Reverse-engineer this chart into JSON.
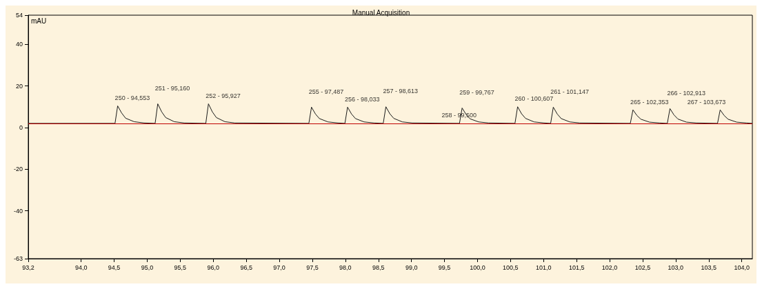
{
  "chart_data": {
    "type": "line",
    "title": "Manual Acquisition",
    "ylabel": "mAU",
    "xlim": [
      93.2,
      104.16
    ],
    "ylim": [
      -63,
      54
    ],
    "xticks": [
      {
        "value": 93.2,
        "label": "93,2"
      },
      {
        "value": 94,
        "label": "94,0"
      },
      {
        "value": 94.5,
        "label": "94,5"
      },
      {
        "value": 95,
        "label": "95,0"
      },
      {
        "value": 95.5,
        "label": "95,5"
      },
      {
        "value": 96,
        "label": "96,0"
      },
      {
        "value": 96.5,
        "label": "96,5"
      },
      {
        "value": 97,
        "label": "97,0"
      },
      {
        "value": 97.5,
        "label": "97,5"
      },
      {
        "value": 98,
        "label": "98,0"
      },
      {
        "value": 98.5,
        "label": "98,5"
      },
      {
        "value": 99,
        "label": "99,0"
      },
      {
        "value": 99.5,
        "label": "99,5"
      },
      {
        "value": 100,
        "label": "100,0"
      },
      {
        "value": 100.5,
        "label": "100,5"
      },
      {
        "value": 101,
        "label": "101,0"
      },
      {
        "value": 101.5,
        "label": "101,5"
      },
      {
        "value": 102,
        "label": "102,0"
      },
      {
        "value": 102.5,
        "label": "102,5"
      },
      {
        "value": 103,
        "label": "103,0"
      },
      {
        "value": 103.5,
        "label": "103,5"
      },
      {
        "value": 104,
        "label": "104,0"
      }
    ],
    "yticks": [
      -63,
      -40,
      -20,
      0,
      20,
      40,
      54
    ],
    "grid": false,
    "marker": "none",
    "line_style": "solid",
    "series": [
      {
        "color": "#1a1a1a",
        "x": [
          93.2,
          94.513,
          94.553,
          94.613,
          94.673,
          94.803,
          94.953,
          95.12,
          95.16,
          95.22,
          95.28,
          95.41,
          95.56,
          95.887,
          95.927,
          95.987,
          96.047,
          96.177,
          96.327,
          97.447,
          97.487,
          97.547,
          97.607,
          97.737,
          97.887,
          97.993,
          98.033,
          98.093,
          98.153,
          98.283,
          98.433,
          98.573,
          98.613,
          98.673,
          98.733,
          98.863,
          99.013,
          99.727,
          99.767,
          99.827,
          99.887,
          100.017,
          100.167,
          100.567,
          100.607,
          100.667,
          100.727,
          100.857,
          101.007,
          101.107,
          101.147,
          101.207,
          101.267,
          101.397,
          101.547,
          102.313,
          102.353,
          102.413,
          102.473,
          102.603,
          102.753,
          102.873,
          102.913,
          102.973,
          103.033,
          103.163,
          103.313,
          103.633,
          103.673,
          103.733,
          103.793,
          103.923,
          104.073,
          104.16
        ],
        "values": [
          2,
          2,
          10.4,
          7,
          4.5,
          2.8,
          2.2,
          2,
          11.4,
          7.5,
          4.8,
          2.8,
          2.2,
          2,
          11.4,
          7.5,
          4.8,
          2.8,
          2.2,
          2,
          9.8,
          6.5,
          4.3,
          2.7,
          2.2,
          2,
          9.8,
          6.5,
          4.3,
          2.7,
          2.2,
          2,
          10,
          6.6,
          4.4,
          2.7,
          2.2,
          2,
          9.4,
          6.3,
          4.2,
          2.7,
          2.2,
          2,
          10,
          6.6,
          4.4,
          2.7,
          2.2,
          2,
          9.8,
          6.5,
          4.3,
          2.7,
          2.2,
          2,
          8.5,
          5.8,
          4,
          2.6,
          2.2,
          2,
          9.1,
          6.1,
          4.1,
          2.6,
          2.2,
          2,
          8.5,
          5.8,
          4,
          2.6,
          2.2,
          2
        ]
      },
      {
        "color": "#c00000",
        "x": [
          93.2,
          104.16
        ],
        "values": [
          1.8,
          1.8
        ]
      }
    ],
    "annotations": [
      {
        "text": "250 - 94,553",
        "x": 94.553,
        "y": 10.4
      },
      {
        "text": "251 - 95,160",
        "x": 95.16,
        "y": 11.4
      },
      {
        "text": "252 - 95,927",
        "x": 95.927,
        "y": 11.4
      },
      {
        "text": "255 - 97,487",
        "x": 97.487,
        "y": 9.8
      },
      {
        "text": "256 - 98,033",
        "x": 98.033,
        "y": 9.8
      },
      {
        "text": "257 - 98,613",
        "x": 98.613,
        "y": 10
      },
      {
        "text": "258 - 99,500",
        "x": 99.5,
        "y": 2
      },
      {
        "text": "259 - 99,767",
        "x": 99.767,
        "y": 9.4
      },
      {
        "text": "260 - 100,607",
        "x": 100.607,
        "y": 10
      },
      {
        "text": "261 - 101,147",
        "x": 101.147,
        "y": 9.8
      },
      {
        "text": "265 - 102,353",
        "x": 102.353,
        "y": 8.5
      },
      {
        "text": "266 - 102,913",
        "x": 102.913,
        "y": 9.1
      },
      {
        "text": "267 - 103,673",
        "x": 103.673,
        "y": 8.5
      }
    ]
  }
}
